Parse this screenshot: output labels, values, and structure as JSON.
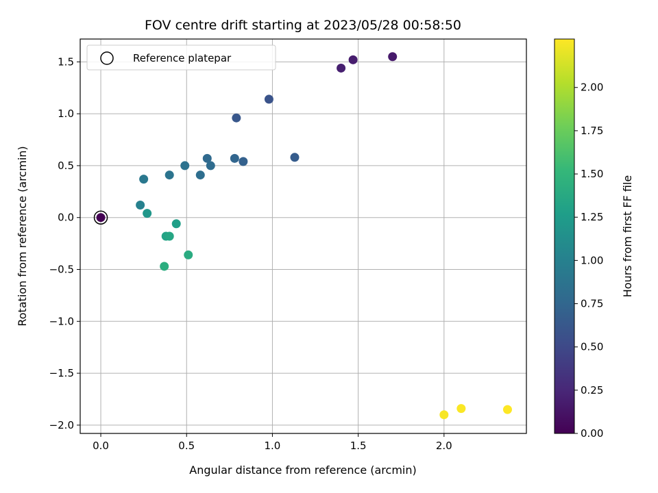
{
  "chart_data": {
    "type": "scatter",
    "title": "FOV centre drift starting at 2023/05/28 00:58:50",
    "xlabel": "Angular distance from reference (arcmin)",
    "ylabel": "Rotation from reference (arcmin)",
    "xlim": [
      -0.12,
      2.48
    ],
    "ylim": [
      -2.08,
      1.72
    ],
    "xticks": [
      0.0,
      0.5,
      1.0,
      1.5,
      2.0
    ],
    "xtick_labels": [
      "0.0",
      "0.5",
      "1.0",
      "1.5",
      "2.0"
    ],
    "yticks": [
      1.5,
      1.0,
      0.5,
      0.0,
      -0.5,
      -1.0,
      -1.5,
      -2.0
    ],
    "ytick_labels": [
      "1.5",
      "1.0",
      "0.5",
      "0.0",
      "−0.5",
      "−1.0",
      "−1.5",
      "−2.0"
    ],
    "grid": true,
    "legend": {
      "position": "upper-left",
      "entries": [
        "Reference platepar"
      ]
    },
    "colorbar": {
      "label": "Hours from first FF file",
      "colormap": "viridis",
      "range": [
        0.0,
        2.28
      ],
      "ticks": [
        0.0,
        0.25,
        0.5,
        0.75,
        1.0,
        1.25,
        1.5,
        1.75,
        2.0
      ],
      "tick_labels": [
        "0.00",
        "0.25",
        "0.50",
        "0.75",
        "1.00",
        "1.25",
        "1.50",
        "1.75",
        "2.00"
      ]
    },
    "reference_point": {
      "x": 0.0,
      "y": 0.0
    },
    "points": [
      {
        "x": 0.0,
        "y": 0.0,
        "c": 0.0
      },
      {
        "x": 1.7,
        "y": 1.55,
        "c": 0.16
      },
      {
        "x": 1.47,
        "y": 1.52,
        "c": 0.18
      },
      {
        "x": 1.4,
        "y": 1.44,
        "c": 0.2
      },
      {
        "x": 0.98,
        "y": 1.14,
        "c": 0.58
      },
      {
        "x": 0.79,
        "y": 0.96,
        "c": 0.62
      },
      {
        "x": 1.13,
        "y": 0.58,
        "c": 0.66
      },
      {
        "x": 0.83,
        "y": 0.54,
        "c": 0.7
      },
      {
        "x": 0.78,
        "y": 0.57,
        "c": 0.74
      },
      {
        "x": 0.62,
        "y": 0.57,
        "c": 0.78
      },
      {
        "x": 0.64,
        "y": 0.5,
        "c": 0.8
      },
      {
        "x": 0.58,
        "y": 0.41,
        "c": 0.82
      },
      {
        "x": 0.49,
        "y": 0.5,
        "c": 0.86
      },
      {
        "x": 0.4,
        "y": 0.41,
        "c": 0.88
      },
      {
        "x": 0.25,
        "y": 0.37,
        "c": 0.92
      },
      {
        "x": 0.23,
        "y": 0.12,
        "c": 1.0
      },
      {
        "x": 0.27,
        "y": 0.04,
        "c": 1.2
      },
      {
        "x": 0.44,
        "y": -0.06,
        "c": 1.28
      },
      {
        "x": 0.38,
        "y": -0.18,
        "c": 1.32
      },
      {
        "x": 0.4,
        "y": -0.18,
        "c": 1.35
      },
      {
        "x": 0.51,
        "y": -0.36,
        "c": 1.4
      },
      {
        "x": 0.37,
        "y": -0.47,
        "c": 1.42
      },
      {
        "x": 2.0,
        "y": -1.9,
        "c": 2.26
      },
      {
        "x": 2.1,
        "y": -1.84,
        "c": 2.27
      },
      {
        "x": 2.37,
        "y": -1.85,
        "c": 2.28
      }
    ]
  }
}
